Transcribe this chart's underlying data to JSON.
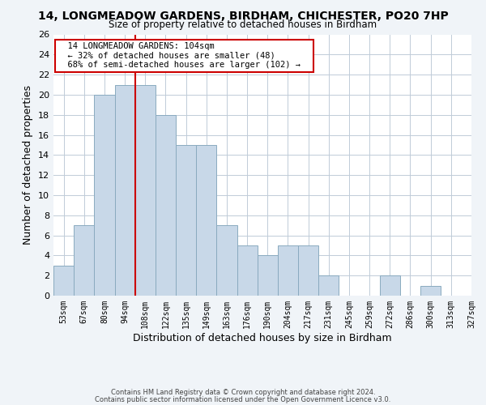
{
  "title_line1": "14, LONGMEADOW GARDENS, BIRDHAM, CHICHESTER, PO20 7HP",
  "title_line2": "Size of property relative to detached houses in Birdham",
  "xlabel": "Distribution of detached houses by size in Birdham",
  "ylabel": "Number of detached properties",
  "bin_labels": [
    "53sqm",
    "67sqm",
    "80sqm",
    "94sqm",
    "108sqm",
    "122sqm",
    "135sqm",
    "149sqm",
    "163sqm",
    "176sqm",
    "190sqm",
    "204sqm",
    "217sqm",
    "231sqm",
    "245sqm",
    "259sqm",
    "272sqm",
    "286sqm",
    "300sqm",
    "313sqm",
    "327sqm"
  ],
  "bar_heights": [
    3,
    7,
    20,
    21,
    21,
    18,
    15,
    15,
    7,
    5,
    4,
    5,
    5,
    2,
    0,
    0,
    2,
    0,
    1,
    0
  ],
  "bar_color": "#c8d8e8",
  "bar_edge_color": "#8aaabf",
  "red_line_index": 4,
  "annotation_title": "14 LONGMEADOW GARDENS: 104sqm",
  "annotation_line2": "← 32% of detached houses are smaller (48)",
  "annotation_line3": "68% of semi-detached houses are larger (102) →",
  "annotation_box_color": "#ffffff",
  "annotation_box_edge": "#cc0000",
  "red_line_color": "#cc0000",
  "ylim": [
    0,
    26
  ],
  "yticks": [
    0,
    2,
    4,
    6,
    8,
    10,
    12,
    14,
    16,
    18,
    20,
    22,
    24,
    26
  ],
  "footer_line1": "Contains HM Land Registry data © Crown copyright and database right 2024.",
  "footer_line2": "Contains public sector information licensed under the Open Government Licence v3.0.",
  "background_color": "#f0f4f8",
  "plot_background_color": "#ffffff",
  "grid_color": "#c0ccd8"
}
